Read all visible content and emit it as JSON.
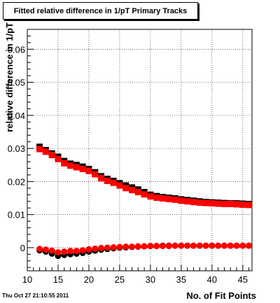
{
  "chart_data": {
    "type": "scatter",
    "title": "Fitted relative difference in 1/pT Primary Tracks",
    "xlabel": "No. of Fit Points",
    "ylabel": "relative difference in 1/pT",
    "xlim": [
      10,
      46.5
    ],
    "ylim": [
      -0.007,
      0.066
    ],
    "x_ticks": [
      10,
      15,
      20,
      25,
      30,
      35,
      40,
      45
    ],
    "y_ticks": [
      0,
      0.01,
      0.02,
      0.03,
      0.04,
      0.05,
      0.06
    ],
    "y_tick_labels": [
      "0",
      "0.01",
      "0.02",
      "0.03",
      "0.04",
      "0.05",
      "0.06"
    ],
    "grid": true,
    "x": [
      12,
      13,
      14,
      15,
      16,
      17,
      18,
      19,
      20,
      21,
      22,
      23,
      24,
      25,
      26,
      27,
      28,
      29,
      30,
      31,
      32,
      33,
      34,
      35,
      36,
      37,
      38,
      39,
      40,
      41,
      42,
      43,
      44,
      45,
      46
    ],
    "series": [
      {
        "marker": "square",
        "color": "#000000",
        "values": [
          0.0305,
          0.0295,
          0.0285,
          0.0275,
          0.0262,
          0.0254,
          0.025,
          0.0245,
          0.0238,
          0.0228,
          0.0216,
          0.0208,
          0.0202,
          0.0195,
          0.0188,
          0.0182,
          0.0176,
          0.0168,
          0.016,
          0.0156,
          0.0153,
          0.0151,
          0.0149,
          0.0146,
          0.0144,
          0.0142,
          0.014,
          0.0138,
          0.0137,
          0.0136,
          0.0135,
          0.0134,
          0.0134,
          0.0133,
          0.0132
        ]
      },
      {
        "marker": "square",
        "color": "#ff0000",
        "values": [
          0.0298,
          0.029,
          0.028,
          0.0268,
          0.0255,
          0.0248,
          0.0243,
          0.0238,
          0.0232,
          0.0222,
          0.021,
          0.0202,
          0.0196,
          0.0188,
          0.018,
          0.0174,
          0.0168,
          0.0161,
          0.0155,
          0.0151,
          0.0149,
          0.0147,
          0.0145,
          0.0142,
          0.014,
          0.0138,
          0.0136,
          0.0135,
          0.0134,
          0.0133,
          0.0132,
          0.0132,
          0.0131,
          0.013,
          0.0129
        ]
      },
      {
        "marker": "circle",
        "color": "#000000",
        "values": [
          -0.0008,
          -0.0012,
          -0.0018,
          -0.0025,
          -0.0022,
          -0.002,
          -0.0018,
          -0.0016,
          -0.0012,
          -0.0009,
          -0.0006,
          -0.0004,
          -0.0002,
          0.0,
          0.0001,
          0.0002,
          0.0003,
          0.0004,
          0.0005,
          0.0005,
          0.0006,
          0.0006,
          0.0006,
          0.0006,
          0.0006,
          0.0006,
          0.0006,
          0.0006,
          0.0006,
          0.0006,
          0.0006,
          0.0006,
          0.0006,
          0.0006,
          0.0006
        ]
      },
      {
        "marker": "circle",
        "color": "#ff0000",
        "values": [
          -0.0004,
          -0.0006,
          -0.0009,
          -0.0014,
          -0.0012,
          -0.001,
          -0.001,
          -0.0008,
          -0.0005,
          -0.0003,
          -0.0001,
          0.0,
          0.0001,
          0.0002,
          0.0003,
          0.0003,
          0.0004,
          0.0004,
          0.0005,
          0.0005,
          0.0005,
          0.0005,
          0.0006,
          0.0006,
          0.0006,
          0.0006,
          0.0006,
          0.0006,
          0.0006,
          0.0006,
          0.0006,
          0.0006,
          0.0006,
          0.0006,
          0.0006
        ]
      }
    ]
  },
  "timestamp": "Thu Oct 27 21:10:55 2011"
}
